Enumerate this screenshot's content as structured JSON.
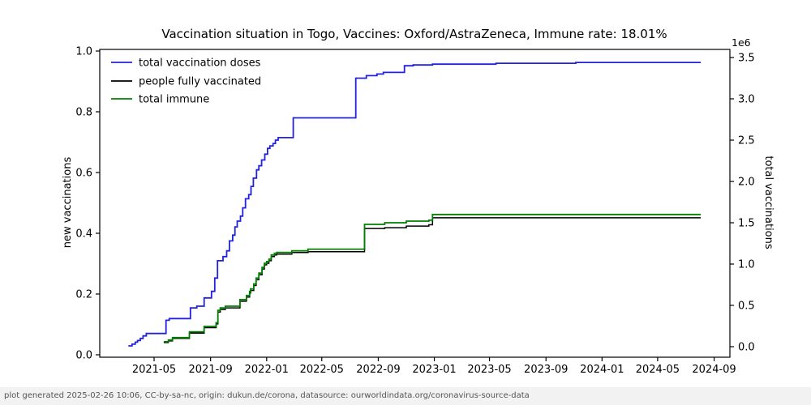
{
  "chart_data": {
    "type": "line",
    "title": "Vaccination situation in Togo, Vaccines: Oxford/AstraZeneca, Immune rate: 18.01%",
    "grid": false,
    "legend_position": "upper left",
    "left_axis": {
      "label": "new vaccinations",
      "ticks": [
        0.0,
        0.2,
        0.4,
        0.6,
        0.8,
        1.0
      ],
      "tick_labels": [
        "0.0",
        "0.2",
        "0.4",
        "0.6",
        "0.8",
        "1.0"
      ],
      "range": [
        0.0,
        1.0
      ]
    },
    "right_axis": {
      "label": "total vaccinations",
      "multiplier": "1e6",
      "ticks": [
        0.0,
        0.5,
        1.0,
        1.5,
        2.0,
        2.5,
        3.0,
        3.5
      ],
      "tick_labels": [
        "0.0",
        "0.5",
        "1.0",
        "1.5",
        "2.0",
        "2.5",
        "3.0",
        "3.5"
      ],
      "range": [
        0.0,
        3.5
      ],
      "unit": "millions"
    },
    "x_axis": {
      "tick_dates": [
        "2021-05-01",
        "2021-09-01",
        "2022-01-01",
        "2022-05-01",
        "2022-09-01",
        "2023-01-01",
        "2023-05-01",
        "2023-09-01",
        "2024-01-01",
        "2024-05-01",
        "2024-09-01"
      ],
      "tick_labels": [
        "2021-05",
        "2021-09",
        "2022-01",
        "2022-05",
        "2022-09",
        "2023-01",
        "2023-05",
        "2023-09",
        "2024-01",
        "2024-05",
        "2024-09"
      ],
      "data_range": [
        "2021-03-06",
        "2024-08-03"
      ]
    },
    "legend": [
      {
        "label": "total vaccination doses",
        "color": "#2222dd"
      },
      {
        "label": "people fully vaccinated",
        "color": "#000000"
      },
      {
        "label": "total immune",
        "color": "#008000"
      }
    ],
    "series": [
      {
        "name": "total vaccination doses",
        "color": "#2222dd",
        "width": 1.8,
        "step": true,
        "points_unit": "1e6",
        "points": [
          [
            "2021-03-06",
            0.01
          ],
          [
            "2021-03-14",
            0.03
          ],
          [
            "2021-03-21",
            0.055
          ],
          [
            "2021-03-26",
            0.075
          ],
          [
            "2021-04-01",
            0.1
          ],
          [
            "2021-04-07",
            0.13
          ],
          [
            "2021-04-14",
            0.16
          ],
          [
            "2021-05-27",
            0.32
          ],
          [
            "2021-06-03",
            0.34
          ],
          [
            "2021-07-19",
            0.47
          ],
          [
            "2021-08-02",
            0.49
          ],
          [
            "2021-08-18",
            0.59
          ],
          [
            "2021-09-03",
            0.67
          ],
          [
            "2021-09-10",
            0.83
          ],
          [
            "2021-09-16",
            1.04
          ],
          [
            "2021-09-28",
            1.09
          ],
          [
            "2021-10-06",
            1.16
          ],
          [
            "2021-10-12",
            1.28
          ],
          [
            "2021-10-19",
            1.35
          ],
          [
            "2021-10-24",
            1.45
          ],
          [
            "2021-10-29",
            1.52
          ],
          [
            "2021-11-05",
            1.58
          ],
          [
            "2021-11-10",
            1.68
          ],
          [
            "2021-11-16",
            1.79
          ],
          [
            "2021-11-23",
            1.84
          ],
          [
            "2021-11-28",
            1.94
          ],
          [
            "2021-12-03",
            2.04
          ],
          [
            "2021-12-10",
            2.14
          ],
          [
            "2021-12-15",
            2.19
          ],
          [
            "2021-12-21",
            2.26
          ],
          [
            "2021-12-28",
            2.33
          ],
          [
            "2022-01-03",
            2.4
          ],
          [
            "2022-01-08",
            2.43
          ],
          [
            "2022-01-15",
            2.46
          ],
          [
            "2022-01-20",
            2.5
          ],
          [
            "2022-01-26",
            2.53
          ],
          [
            "2022-02-28",
            2.77
          ],
          [
            "2022-07-14",
            3.25
          ],
          [
            "2022-08-06",
            3.28
          ],
          [
            "2022-08-29",
            3.3
          ],
          [
            "2022-09-12",
            3.32
          ],
          [
            "2022-10-28",
            3.4
          ],
          [
            "2022-11-16",
            3.41
          ],
          [
            "2022-12-28",
            3.42
          ],
          [
            "2023-05-15",
            3.43
          ],
          [
            "2023-11-05",
            3.44
          ],
          [
            "2024-08-03",
            3.44
          ]
        ]
      },
      {
        "name": "people fully vaccinated",
        "color": "#000000",
        "width": 1.5,
        "step": true,
        "points_unit": "1e6",
        "points": [
          [
            "2021-05-22",
            0.05
          ],
          [
            "2021-06-01",
            0.07
          ],
          [
            "2021-06-10",
            0.1
          ],
          [
            "2021-07-17",
            0.165
          ],
          [
            "2021-08-18",
            0.23
          ],
          [
            "2021-09-13",
            0.275
          ],
          [
            "2021-09-17",
            0.42
          ],
          [
            "2021-09-22",
            0.45
          ],
          [
            "2021-10-03",
            0.47
          ],
          [
            "2021-11-04",
            0.55
          ],
          [
            "2021-11-18",
            0.6
          ],
          [
            "2021-11-25",
            0.65
          ],
          [
            "2021-11-27",
            0.68
          ],
          [
            "2021-12-04",
            0.74
          ],
          [
            "2021-12-09",
            0.81
          ],
          [
            "2021-12-15",
            0.87
          ],
          [
            "2021-12-22",
            0.94
          ],
          [
            "2021-12-27",
            0.99
          ],
          [
            "2022-01-01",
            1.01
          ],
          [
            "2022-01-06",
            1.04
          ],
          [
            "2022-01-11",
            1.09
          ],
          [
            "2022-01-18",
            1.11
          ],
          [
            "2022-01-23",
            1.12
          ],
          [
            "2022-02-25",
            1.14
          ],
          [
            "2022-04-01",
            1.15
          ],
          [
            "2022-08-02",
            1.43
          ],
          [
            "2022-09-15",
            1.44
          ],
          [
            "2022-11-01",
            1.46
          ],
          [
            "2022-12-20",
            1.475
          ],
          [
            "2022-12-28",
            1.56
          ],
          [
            "2024-08-03",
            1.56
          ]
        ]
      },
      {
        "name": "total immune",
        "color": "#008000",
        "width": 1.8,
        "step": true,
        "points_unit": "1e6",
        "points": [
          [
            "2021-05-22",
            0.06
          ],
          [
            "2021-06-01",
            0.08
          ],
          [
            "2021-06-10",
            0.11
          ],
          [
            "2021-07-17",
            0.18
          ],
          [
            "2021-08-18",
            0.245
          ],
          [
            "2021-09-13",
            0.29
          ],
          [
            "2021-09-17",
            0.44
          ],
          [
            "2021-09-22",
            0.47
          ],
          [
            "2021-10-03",
            0.49
          ],
          [
            "2021-11-04",
            0.57
          ],
          [
            "2021-11-18",
            0.62
          ],
          [
            "2021-11-25",
            0.67
          ],
          [
            "2021-11-27",
            0.7
          ],
          [
            "2021-12-04",
            0.76
          ],
          [
            "2021-12-09",
            0.83
          ],
          [
            "2021-12-15",
            0.89
          ],
          [
            "2021-12-22",
            0.96
          ],
          [
            "2021-12-27",
            1.01
          ],
          [
            "2022-01-01",
            1.03
          ],
          [
            "2022-01-06",
            1.06
          ],
          [
            "2022-01-11",
            1.11
          ],
          [
            "2022-01-18",
            1.13
          ],
          [
            "2022-01-23",
            1.14
          ],
          [
            "2022-02-25",
            1.16
          ],
          [
            "2022-04-01",
            1.18
          ],
          [
            "2022-08-02",
            1.48
          ],
          [
            "2022-09-15",
            1.5
          ],
          [
            "2022-11-01",
            1.52
          ],
          [
            "2022-12-20",
            1.53
          ],
          [
            "2022-12-28",
            1.6
          ],
          [
            "2024-08-03",
            1.6
          ]
        ]
      }
    ]
  },
  "footer": {
    "text": "plot generated 2025-02-26 10:06, CC-by-sa-nc, origin: dukun.de/corona, datasource: ourworldindata.org/coronavirus-source-data"
  }
}
